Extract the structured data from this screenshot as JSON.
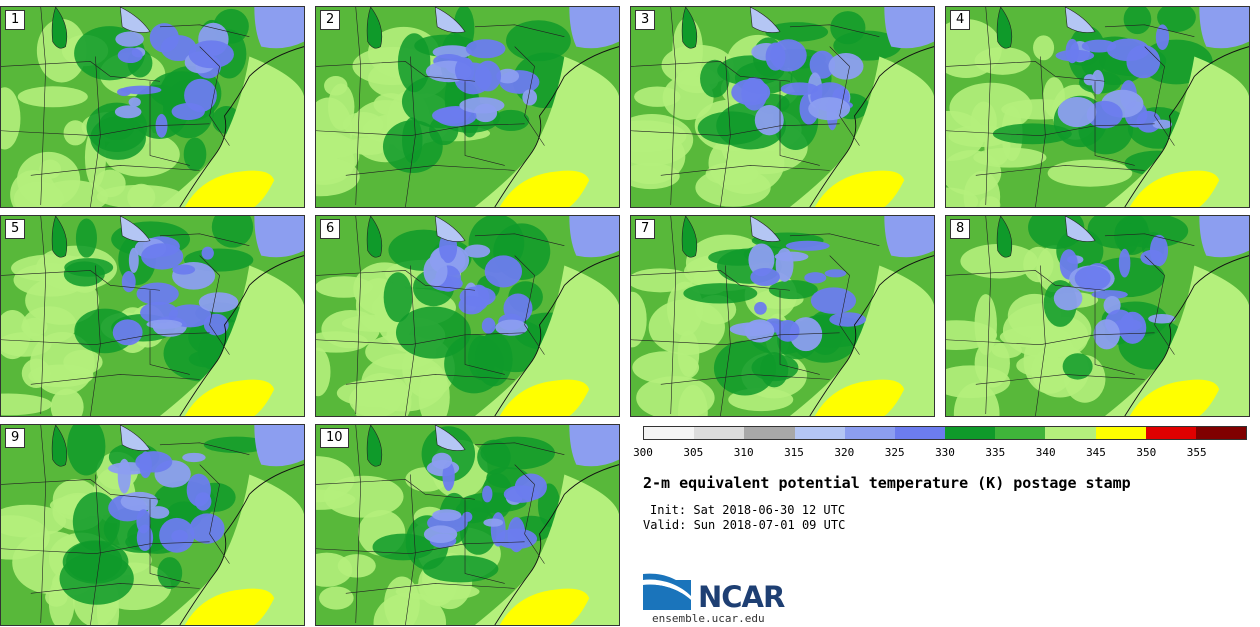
{
  "panels": [
    {
      "label": "1"
    },
    {
      "label": "2"
    },
    {
      "label": "3"
    },
    {
      "label": "4"
    },
    {
      "label": "5"
    },
    {
      "label": "6"
    },
    {
      "label": "7"
    },
    {
      "label": "8"
    },
    {
      "label": "9"
    },
    {
      "label": "10"
    }
  ],
  "colorbar": {
    "ticks": [
      "300",
      "305",
      "310",
      "315",
      "320",
      "325",
      "330",
      "335",
      "340",
      "345",
      "350",
      "355"
    ],
    "colors": [
      "#f4f4f4",
      "#dcdcdc",
      "#a8a8a8",
      "#b4c6f4",
      "#8c9ef0",
      "#6c7cee",
      "#0f9a2a",
      "#3fb43a",
      "#b4f07c",
      "#ffff00",
      "#e00000",
      "#800000"
    ]
  },
  "title": "2-m equivalent potential temperature (K) postage stamp",
  "init": "Init: Sat 2018-06-30 12 UTC",
  "valid": "Valid: Sun 2018-07-01 09 UTC",
  "logo_text": "NCAR",
  "url": "ensemble.ucar.edu",
  "map_colors": {
    "base": "#58b83a",
    "dark_green": "#0f9a2a",
    "light_green": "#b4f07c",
    "yellow": "#ffff00",
    "blue": "#6c7cee",
    "light_blue": "#8c9ef0",
    "water": "#b4c6f4"
  }
}
